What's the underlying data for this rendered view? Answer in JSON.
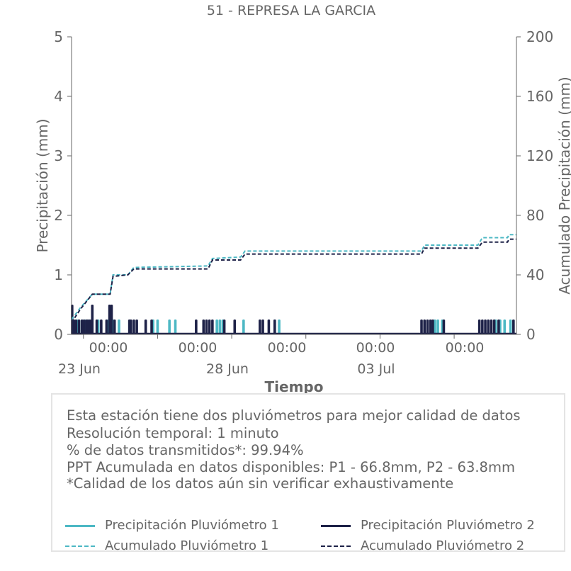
{
  "chart_data": {
    "type": "bar+line",
    "title": "51 - REPRESA LA GARCIA",
    "xlabel": "Tiempo",
    "ylabel_left": "Precipitación (mm)",
    "ylabel_right": "Acumulado Precipitación (mm)",
    "ylim_left": [
      0,
      5
    ],
    "ylim_right": [
      0,
      200
    ],
    "yticks_left": [
      "0",
      "1",
      "2",
      "3",
      "4",
      "5"
    ],
    "yticks_right": [
      "0",
      "40",
      "80",
      "120",
      "160",
      "200"
    ],
    "xlim_days": [
      -0.4,
      14.6
    ],
    "xtick_time_labels": [
      "00:00",
      "00:00",
      "00:00",
      "00:00",
      "00:00"
    ],
    "xtick_date_labels": [
      "23 Jun",
      "28 Jun",
      "03 Jul"
    ],
    "series": [
      {
        "name": "Precipitación Pluviómetro 1",
        "kind": "bar",
        "color": "#4db8c4",
        "events": [
          [
            -0.35,
            0.25
          ],
          [
            -0.2,
            0.25
          ],
          [
            -0.05,
            0.25
          ],
          [
            0.05,
            0.25
          ],
          [
            0.2,
            0.25
          ],
          [
            0.5,
            0.25
          ],
          [
            0.85,
            0.25
          ],
          [
            1.0,
            0.25
          ],
          [
            1.2,
            0.25
          ],
          [
            2.35,
            0.25
          ],
          [
            2.5,
            0.25
          ],
          [
            2.9,
            0.25
          ],
          [
            3.1,
            0.25
          ],
          [
            4.5,
            0.25
          ],
          [
            4.6,
            0.25
          ],
          [
            4.7,
            0.25
          ],
          [
            5.4,
            0.25
          ],
          [
            6.45,
            0.25
          ],
          [
            6.6,
            0.25
          ],
          [
            11.85,
            0.25
          ],
          [
            11.95,
            0.25
          ],
          [
            12.1,
            0.25
          ],
          [
            13.9,
            0.25
          ],
          [
            14.05,
            0.25
          ],
          [
            14.2,
            0.25
          ],
          [
            14.4,
            0.25
          ]
        ]
      },
      {
        "name": "Precipitación Pluviómetro 2",
        "kind": "bar",
        "color": "#1e2248",
        "events": [
          [
            -0.38,
            0.5
          ],
          [
            -0.32,
            0.25
          ],
          [
            -0.25,
            0.25
          ],
          [
            -0.15,
            0.25
          ],
          [
            -0.05,
            0.25
          ],
          [
            0.02,
            0.25
          ],
          [
            0.1,
            0.25
          ],
          [
            0.15,
            0.25
          ],
          [
            0.22,
            0.25
          ],
          [
            0.3,
            0.5
          ],
          [
            0.45,
            0.25
          ],
          [
            0.6,
            0.25
          ],
          [
            0.78,
            0.25
          ],
          [
            0.88,
            0.5
          ],
          [
            0.95,
            0.5
          ],
          [
            1.05,
            0.25
          ],
          [
            1.55,
            0.25
          ],
          [
            1.6,
            0.25
          ],
          [
            1.7,
            0.25
          ],
          [
            1.8,
            0.25
          ],
          [
            2.1,
            0.25
          ],
          [
            2.3,
            0.25
          ],
          [
            3.8,
            0.25
          ],
          [
            4.05,
            0.25
          ],
          [
            4.15,
            0.25
          ],
          [
            4.25,
            0.25
          ],
          [
            4.35,
            0.25
          ],
          [
            4.75,
            0.25
          ],
          [
            5.1,
            0.25
          ],
          [
            5.95,
            0.25
          ],
          [
            6.05,
            0.25
          ],
          [
            6.25,
            0.25
          ],
          [
            6.45,
            0.25
          ],
          [
            11.4,
            0.25
          ],
          [
            11.5,
            0.25
          ],
          [
            11.6,
            0.25
          ],
          [
            11.7,
            0.25
          ],
          [
            11.78,
            0.25
          ],
          [
            12.15,
            0.25
          ],
          [
            13.35,
            0.25
          ],
          [
            13.45,
            0.25
          ],
          [
            13.55,
            0.25
          ],
          [
            13.65,
            0.25
          ],
          [
            13.75,
            0.25
          ],
          [
            13.85,
            0.25
          ],
          [
            14.0,
            0.25
          ],
          [
            14.5,
            0.25
          ]
        ]
      },
      {
        "name": "Acumulado Pluviómetro 1",
        "kind": "line-dashed",
        "axis": "right",
        "color": "#4db8c4",
        "points": [
          [
            -0.4,
            10
          ],
          [
            -0.1,
            18
          ],
          [
            0.3,
            27
          ],
          [
            0.9,
            27
          ],
          [
            1.0,
            40
          ],
          [
            1.5,
            40
          ],
          [
            1.7,
            45
          ],
          [
            4.2,
            46
          ],
          [
            4.35,
            51
          ],
          [
            5.3,
            52
          ],
          [
            5.45,
            56
          ],
          [
            11.4,
            56
          ],
          [
            11.5,
            60
          ],
          [
            13.3,
            60
          ],
          [
            13.45,
            65
          ],
          [
            14.3,
            65
          ],
          [
            14.35,
            67
          ],
          [
            14.6,
            67
          ]
        ]
      },
      {
        "name": "Acumulado Pluviómetro 2",
        "kind": "line-dashed",
        "axis": "right",
        "color": "#1e2248",
        "points": [
          [
            -0.4,
            8
          ],
          [
            -0.1,
            17
          ],
          [
            0.3,
            27
          ],
          [
            0.9,
            27
          ],
          [
            1.0,
            39
          ],
          [
            1.5,
            40
          ],
          [
            1.7,
            44
          ],
          [
            4.2,
            44
          ],
          [
            4.35,
            50
          ],
          [
            5.3,
            50
          ],
          [
            5.45,
            54
          ],
          [
            11.4,
            54
          ],
          [
            11.5,
            58
          ],
          [
            13.3,
            58
          ],
          [
            13.45,
            62
          ],
          [
            14.3,
            62
          ],
          [
            14.35,
            64
          ],
          [
            14.6,
            64
          ]
        ]
      }
    ]
  },
  "info": {
    "line1": "Esta estación tiene dos pluviómetros para mejor calidad de datos",
    "line2": "Resolución temporal: 1 minuto",
    "line3": "% de datos transmitidos*: 99.94%",
    "line4": "PPT Acumulada en datos disponibles: P1 - 66.8mm, P2 - 63.8mm",
    "line5": "*Calidad de los datos aún sin verificar exhaustivamente"
  },
  "legend": {
    "p1_precip": "Precipitación Pluviómetro 1",
    "p2_precip": "Precipitación Pluviómetro 2",
    "p1_acum": "Acumulado Pluviómetro 1",
    "p2_acum": "Acumulado Pluviómetro 2"
  },
  "colors": {
    "p1": "#4db8c4",
    "p2": "#1e2248",
    "axis": "#666666"
  }
}
